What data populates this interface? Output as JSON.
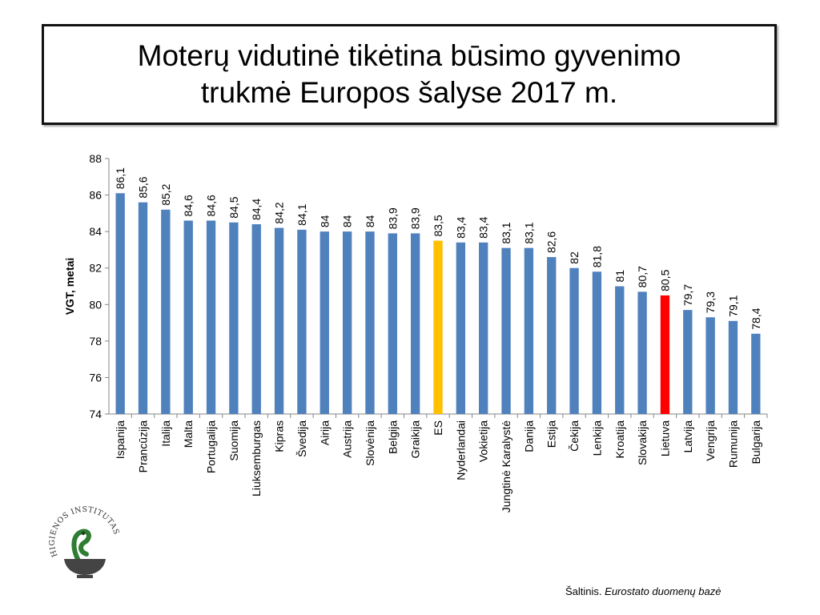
{
  "title": {
    "line1": "Moterų vidutinė tikėtina būsimo gyvenimo",
    "line2": "trukmė  Europos šalyse 2017 m."
  },
  "colors": {
    "default": "#4F81BD",
    "eu": "#FFC000",
    "lithuania": "#FF0000"
  },
  "chart_data": {
    "type": "bar",
    "title": "Moterų vidutinė tikėtina būsimo gyvenimo trukmė  Europos šalyse 2017 m.",
    "xlabel": "",
    "ylabel": "VGT, metai",
    "ylim": [
      74,
      88
    ],
    "yticks": [
      74,
      76,
      78,
      80,
      82,
      84,
      86,
      88
    ],
    "grid": false,
    "categories": [
      "Ispanija",
      "Prancūzija",
      "Italija",
      "Malta",
      "Portugalija",
      "Suomija",
      "Liuksemburgas",
      "Kipras",
      "Švedija",
      "Airija",
      "Austrija",
      "Slovėnija",
      "Belgija",
      "Graikija",
      "ES",
      "Nyderlandai",
      "Vokietija",
      "Jungtinė Karalystė",
      "Danija",
      "Estija",
      "Čekija",
      "Lenkija",
      "Kroatija",
      "Slovakija",
      "Lietuva",
      "Latvija",
      "Vengrija",
      "Rumunija",
      "Bulgarija"
    ],
    "values": [
      86.1,
      85.6,
      85.2,
      84.6,
      84.6,
      84.5,
      84.4,
      84.2,
      84.1,
      84,
      84,
      84,
      83.9,
      83.9,
      83.5,
      83.4,
      83.4,
      83.1,
      83.1,
      82.6,
      82,
      81.8,
      81,
      80.7,
      80.5,
      79.7,
      79.3,
      79.1,
      78.4
    ],
    "labels": [
      "86,1",
      "85,6",
      "85,2",
      "84,6",
      "84,6",
      "84,5",
      "84,4",
      "84,2",
      "84,1",
      "84",
      "84",
      "84",
      "83,9",
      "83,9",
      "83,5",
      "83,4",
      "83,4",
      "83,1",
      "83,1",
      "82,6",
      "82",
      "81,8",
      "81",
      "80,7",
      "80,5",
      "79,7",
      "79,3",
      "79,1",
      "78,4"
    ],
    "highlight": {
      "ES": "eu",
      "Lietuva": "lithuania"
    }
  },
  "logo": {
    "text": "HIGIENOS INSTITUTAS"
  },
  "source": {
    "prefix": "Šaltinis.",
    "text": "Eurostato duomenų bazė"
  }
}
